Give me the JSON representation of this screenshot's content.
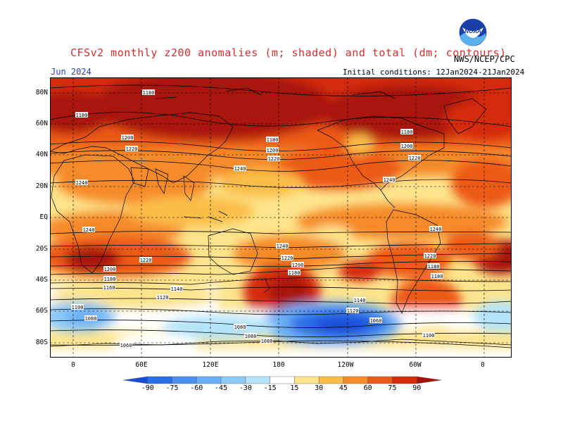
{
  "header": {
    "title": "CFSv2 monthly z200 anomalies (m; shaded) and total (dm; contours)",
    "month": "Jun 2024",
    "agency": "NWS/NCEP/CPC",
    "initial_conditions": "Initial conditions: 12Jan2024-21Jan2024",
    "logo_text": "NOAA"
  },
  "axes": {
    "lat_labels": [
      "80N",
      "60N",
      "40N",
      "20N",
      "EQ",
      "20S",
      "40S",
      "60S",
      "80S"
    ],
    "lon_labels": [
      "0",
      "60E",
      "120E",
      "180",
      "120W",
      "60W",
      "0"
    ]
  },
  "colorbar": {
    "labels": [
      "-90",
      "-75",
      "-60",
      "-45",
      "-30",
      "-15",
      "15",
      "30",
      "45",
      "60",
      "75",
      "90"
    ],
    "colors": [
      "#1a4ed8",
      "#2a6ee8",
      "#4a8ef0",
      "#6aaef5",
      "#8ccaf8",
      "#b4e4fb",
      "#ffffff",
      "#fde48c",
      "#fbbd4a",
      "#f58a2a",
      "#ec5a18",
      "#d42a0c",
      "#a8120a"
    ]
  },
  "contour_labels": [
    "1180",
    "1180",
    "1200",
    "1220",
    "1240",
    "1180",
    "1200",
    "1220",
    "1240",
    "1180",
    "1200",
    "1220",
    "1240",
    "1240",
    "1240",
    "1240",
    "1220",
    "1220",
    "1220",
    "1200",
    "1200",
    "1180",
    "1180",
    "1180",
    "1180",
    "1160",
    "1140",
    "1120",
    "1140",
    "1120",
    "1100",
    "1080",
    "1060",
    "1080",
    "1080",
    "1100",
    "1080",
    "1060"
  ]
}
